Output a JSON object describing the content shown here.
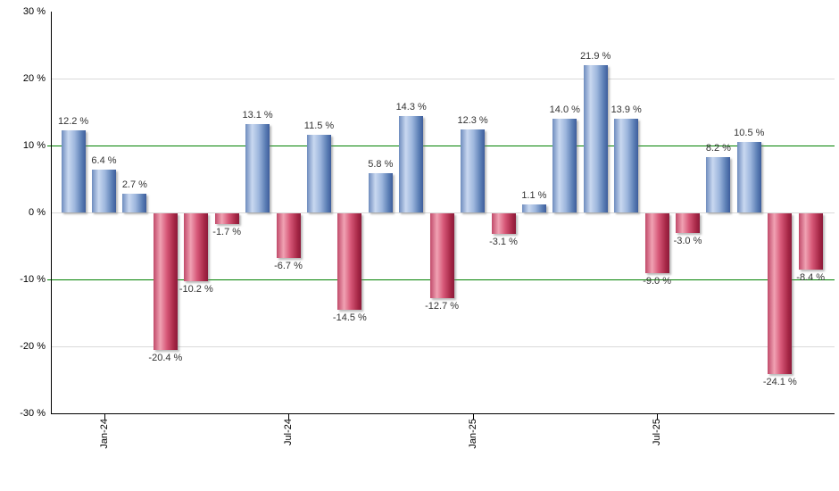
{
  "chart_data": {
    "type": "bar",
    "title": "",
    "xlabel": "",
    "ylabel": "",
    "unit": "%",
    "ylim": [
      -30,
      30
    ],
    "grid": true,
    "legend": "none",
    "values": [
      12.2,
      6.4,
      2.7,
      -20.4,
      -10.2,
      -1.7,
      13.1,
      -6.7,
      11.5,
      -14.5,
      5.8,
      14.3,
      -12.7,
      12.3,
      -3.1,
      1.1,
      14.0,
      21.9,
      13.9,
      -9.0,
      -3.0,
      8.2,
      10.5,
      -24.1,
      -8.4
    ],
    "bar_labels": [
      "12.2 %",
      "6.4 %",
      "2.7 %",
      "-20.4 %",
      "-10.2 %",
      "-1.7 %",
      "13.1 %",
      "-6.7 %",
      "11.5 %",
      "-14.5 %",
      "5.8 %",
      "14.3 %",
      "-12.7 %",
      "12.3 %",
      "-3.1 %",
      "1.1 %",
      "14.0 %",
      "21.9 %",
      "13.9 %",
      "-9.0 %",
      "-3.0 %",
      "8.2 %",
      "10.5 %",
      "-24.1 %",
      "-8.4 %"
    ],
    "yticks": [
      {
        "value": 30,
        "label": "30 %"
      },
      {
        "value": 20,
        "label": "20 %"
      },
      {
        "value": 10,
        "label": "10 %"
      },
      {
        "value": 0,
        "label": "0 %"
      },
      {
        "value": -10,
        "label": "-10 %"
      },
      {
        "value": -20,
        "label": "-20 %"
      },
      {
        "value": -30,
        "label": "-30 %"
      }
    ],
    "xticks": [
      {
        "label": "Jan-24",
        "slot": 1
      },
      {
        "label": "Jul-24",
        "slot": 7
      },
      {
        "label": "Jan-25",
        "slot": 13
      },
      {
        "label": "Jul-25",
        "slot": 19
      }
    ],
    "highlight_lines": [
      10,
      -10
    ],
    "colors": {
      "highlight_line": "#008000",
      "grid": "#d9d9d9",
      "axis": "#000000",
      "value_label_text": "#333333",
      "positive_gradient": [
        "#6e8cbe",
        "#c9d8f0",
        "#9db6dd",
        "#5d80b6",
        "#3d5d9c"
      ],
      "negative_gradient": [
        "#c14a6a",
        "#f0a2b3",
        "#d75878",
        "#a62746",
        "#8c1a3a"
      ]
    }
  }
}
